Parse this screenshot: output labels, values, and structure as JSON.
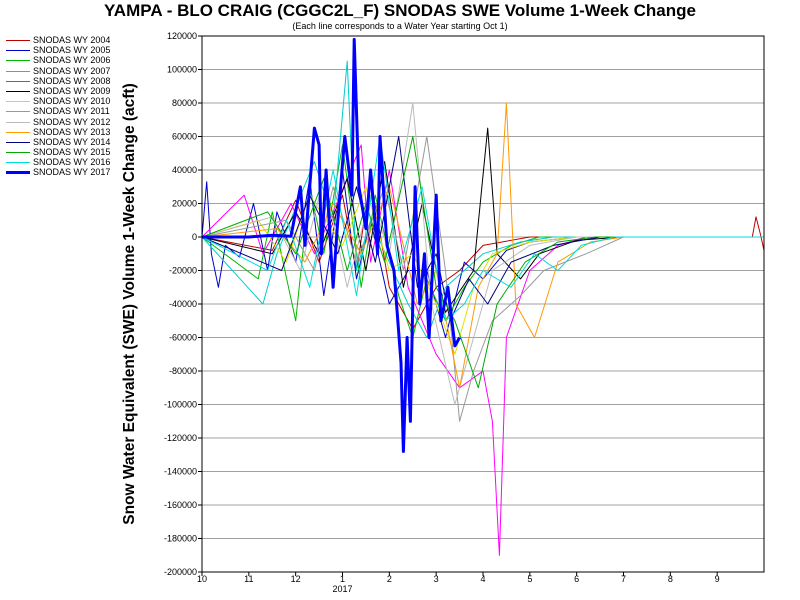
{
  "title": "YAMPA - BLO CRAIG (CGGC2L_F) SNODAS SWE Volume 1-Week Change",
  "subtitle": "(Each line corresponds to a Water Year starting Oct 1)",
  "chart_data": {
    "type": "line",
    "title": "YAMPA - BLO CRAIG (CGGC2L_F) SNODAS SWE Volume 1-Week Change",
    "subtitle": "(Each line corresponds to a Water Year starting Oct 1)",
    "ylabel": "Snow Water Equivalent (SWE) Volume 1-Week Change (acft)",
    "xlabel": "",
    "ylim": [
      -200000,
      120000
    ],
    "yticks": [
      120000,
      100000,
      80000,
      60000,
      40000,
      20000,
      0,
      -20000,
      -40000,
      -60000,
      -80000,
      -100000,
      -120000,
      -140000,
      -160000,
      -180000,
      -200000
    ],
    "ytick_labels": [
      "120000",
      "100000",
      "80000",
      "60000",
      "40000",
      "20000",
      "0",
      "-20000",
      "-40000",
      "-60000",
      "-80000",
      "-100000",
      "-120000",
      "-140000",
      "-160000",
      "-180000",
      "-200000"
    ],
    "xlim": [
      0,
      12
    ],
    "xticks": [
      0,
      1,
      2,
      3,
      4,
      5,
      6,
      7,
      8,
      9,
      10,
      11
    ],
    "xtick_labels": [
      "10",
      "11",
      "12",
      "1",
      "2",
      "3",
      "4",
      "5",
      "6",
      "7",
      "8",
      "9"
    ],
    "x_year_label": "2017",
    "x_units": "months since Oct 1",
    "grid": true,
    "legend_position": "left",
    "series": [
      {
        "name": "SNODAS WY 2004",
        "color": "#c00000",
        "points": [
          [
            0,
            0
          ],
          [
            1.5,
            -8000
          ],
          [
            2,
            22000
          ],
          [
            2.5,
            -15000
          ],
          [
            3,
            25000
          ],
          [
            3.3,
            -20000
          ],
          [
            3.6,
            35000
          ],
          [
            4,
            -30000
          ],
          [
            4.5,
            -55000
          ],
          [
            5,
            -30000
          ],
          [
            5.5,
            -20000
          ],
          [
            6,
            -5000
          ],
          [
            7,
            0
          ],
          [
            11.75,
            0
          ],
          [
            11.83,
            12000
          ],
          [
            11.92,
            2000
          ],
          [
            12,
            -8000
          ]
        ]
      },
      {
        "name": "SNODAS WY 2005",
        "color": "#0000cc",
        "points": [
          [
            0,
            0
          ],
          [
            0.1,
            33000
          ],
          [
            0.2,
            -10000
          ],
          [
            0.35,
            -30000
          ],
          [
            0.5,
            -5000
          ],
          [
            0.8,
            -12000
          ],
          [
            1.1,
            20000
          ],
          [
            1.4,
            -20000
          ],
          [
            1.6,
            15000
          ],
          [
            2,
            -15000
          ],
          [
            2.3,
            35000
          ],
          [
            2.6,
            -35000
          ],
          [
            3,
            40000
          ],
          [
            3.3,
            -25000
          ],
          [
            3.6,
            10000
          ],
          [
            4,
            -40000
          ],
          [
            4.4,
            -20000
          ],
          [
            4.8,
            -20000
          ],
          [
            5.2,
            -60000
          ],
          [
            5.6,
            -15000
          ],
          [
            6,
            -25000
          ],
          [
            6.5,
            -8000
          ],
          [
            7,
            -3000
          ],
          [
            8,
            0
          ],
          [
            12,
            0
          ]
        ]
      },
      {
        "name": "SNODAS WY 2006",
        "color": "#00bb00",
        "points": [
          [
            0,
            0
          ],
          [
            1.2,
            -25000
          ],
          [
            1.5,
            15000
          ],
          [
            2,
            -50000
          ],
          [
            2.3,
            30000
          ],
          [
            2.6,
            -10000
          ],
          [
            3,
            55000
          ],
          [
            3.4,
            -30000
          ],
          [
            3.7,
            25000
          ],
          [
            4.2,
            -35000
          ],
          [
            4.5,
            -60000
          ],
          [
            4.8,
            -25000
          ],
          [
            5.2,
            -50000
          ],
          [
            5.6,
            -30000
          ],
          [
            6,
            -15000
          ],
          [
            6.6,
            -5000
          ],
          [
            7.2,
            0
          ],
          [
            12,
            0
          ]
        ]
      },
      {
        "name": "SNODAS WY 2007",
        "color": "#00cccc",
        "points": [
          [
            0,
            0
          ],
          [
            1.3,
            -40000
          ],
          [
            1.6,
            -10000
          ],
          [
            2.4,
            45000
          ],
          [
            2.8,
            10000
          ],
          [
            3.1,
            105000
          ],
          [
            3.3,
            -20000
          ],
          [
            3.6,
            10000
          ],
          [
            4,
            -15000
          ],
          [
            4.4,
            -40000
          ],
          [
            4.8,
            -60000
          ],
          [
            5.2,
            -30000
          ],
          [
            5.6,
            -20000
          ],
          [
            6,
            -10000
          ],
          [
            6.8,
            -3000
          ],
          [
            7.5,
            0
          ],
          [
            12,
            0
          ]
        ]
      },
      {
        "name": "SNODAS WY 2008",
        "color": "#ff00ff",
        "points": [
          [
            0,
            0
          ],
          [
            0.9,
            25000
          ],
          [
            1.3,
            -10000
          ],
          [
            1.9,
            20000
          ],
          [
            2.4,
            -10000
          ],
          [
            2.8,
            15000
          ],
          [
            3.4,
            55000
          ],
          [
            3.6,
            -15000
          ],
          [
            4,
            40000
          ],
          [
            4.4,
            -30000
          ],
          [
            5,
            -70000
          ],
          [
            5.5,
            -90000
          ],
          [
            6.0,
            -80000
          ],
          [
            6.2,
            -110000
          ],
          [
            6.35,
            -190000
          ],
          [
            6.5,
            -60000
          ],
          [
            7,
            -20000
          ],
          [
            7.6,
            -5000
          ],
          [
            8.2,
            0
          ],
          [
            12,
            0
          ]
        ]
      },
      {
        "name": "SNODAS WY 2009",
        "color": "#000000",
        "points": [
          [
            0,
            0
          ],
          [
            1.5,
            -10000
          ],
          [
            2,
            15000
          ],
          [
            2.5,
            -10000
          ],
          [
            3.1,
            35000
          ],
          [
            3.5,
            -20000
          ],
          [
            3.9,
            45000
          ],
          [
            4.3,
            -30000
          ],
          [
            4.7,
            20000
          ],
          [
            5.2,
            -45000
          ],
          [
            5.8,
            -20000
          ],
          [
            6.1,
            65000
          ],
          [
            6.3,
            -10000
          ],
          [
            6.8,
            -25000
          ],
          [
            7.2,
            -10000
          ],
          [
            8,
            -2000
          ],
          [
            9,
            0
          ],
          [
            12,
            0
          ]
        ]
      },
      {
        "name": "SNODAS WY 2010",
        "color": "#e0e000",
        "points": [
          [
            0,
            0
          ],
          [
            1.2,
            10000
          ],
          [
            1.8,
            -15000
          ],
          [
            2.3,
            25000
          ],
          [
            3,
            -5000
          ],
          [
            3.5,
            30000
          ],
          [
            4,
            -20000
          ],
          [
            4.5,
            -10000
          ],
          [
            5,
            -40000
          ],
          [
            5.4,
            -70000
          ],
          [
            5.8,
            -30000
          ],
          [
            6.2,
            -10000
          ],
          [
            7,
            -3000
          ],
          [
            8,
            0
          ],
          [
            12,
            0
          ]
        ]
      },
      {
        "name": "SNODAS WY 2011",
        "color": "#999999",
        "points": [
          [
            0,
            0
          ],
          [
            1.8,
            10000
          ],
          [
            2.4,
            -20000
          ],
          [
            2.8,
            30000
          ],
          [
            3.3,
            -15000
          ],
          [
            3.9,
            30000
          ],
          [
            4.3,
            -20000
          ],
          [
            4.8,
            60000
          ],
          [
            5.2,
            -20000
          ],
          [
            5.5,
            -110000
          ],
          [
            5.8,
            -80000
          ],
          [
            6.2,
            -50000
          ],
          [
            6.8,
            -35000
          ],
          [
            7.3,
            -20000
          ],
          [
            8.2,
            -10000
          ],
          [
            8.6,
            -5000
          ],
          [
            9,
            0
          ],
          [
            12,
            0
          ]
        ]
      },
      {
        "name": "SNODAS WY 2012",
        "color": "#bbbbbb",
        "points": [
          [
            0,
            0
          ],
          [
            1.5,
            12000
          ],
          [
            2.1,
            -20000
          ],
          [
            2.6,
            35000
          ],
          [
            3.1,
            -30000
          ],
          [
            3.6,
            25000
          ],
          [
            4,
            -10000
          ],
          [
            4.5,
            80000
          ],
          [
            4.9,
            -40000
          ],
          [
            5.4,
            -100000
          ],
          [
            5.8,
            -60000
          ],
          [
            6.2,
            -20000
          ],
          [
            7,
            -5000
          ],
          [
            8,
            0
          ],
          [
            12,
            0
          ]
        ]
      },
      {
        "name": "SNODAS WY 2013",
        "color": "#ff9900",
        "points": [
          [
            0,
            0
          ],
          [
            1.6,
            5000
          ],
          [
            2.2,
            -15000
          ],
          [
            2.8,
            20000
          ],
          [
            3.4,
            -10000
          ],
          [
            4,
            30000
          ],
          [
            4.6,
            -40000
          ],
          [
            5,
            -20000
          ],
          [
            5.5,
            -90000
          ],
          [
            5.9,
            -30000
          ],
          [
            6.3,
            -10000
          ],
          [
            6.5,
            80000
          ],
          [
            6.7,
            -40000
          ],
          [
            7.1,
            -60000
          ],
          [
            7.6,
            -15000
          ],
          [
            8.3,
            -3000
          ],
          [
            9,
            0
          ],
          [
            12,
            0
          ]
        ]
      },
      {
        "name": "SNODAS WY 2014",
        "color": "#000080",
        "points": [
          [
            0,
            0
          ],
          [
            1.7,
            -20000
          ],
          [
            2.3,
            25000
          ],
          [
            2.9,
            -10000
          ],
          [
            3.3,
            30000
          ],
          [
            3.7,
            -15000
          ],
          [
            4.2,
            60000
          ],
          [
            4.6,
            -30000
          ],
          [
            5,
            -10000
          ],
          [
            5.3,
            -50000
          ],
          [
            5.7,
            -25000
          ],
          [
            6.1,
            -40000
          ],
          [
            6.6,
            -15000
          ],
          [
            7.5,
            -5000
          ],
          [
            8.5,
            0
          ],
          [
            12,
            0
          ]
        ]
      },
      {
        "name": "SNODAS WY 2015",
        "color": "#00aa00",
        "points": [
          [
            0,
            0
          ],
          [
            1.4,
            15000
          ],
          [
            2,
            -10000
          ],
          [
            2.6,
            35000
          ],
          [
            3.1,
            -20000
          ],
          [
            3.5,
            20000
          ],
          [
            3.9,
            -15000
          ],
          [
            4.5,
            60000
          ],
          [
            5,
            -30000
          ],
          [
            5.4,
            -50000
          ],
          [
            5.9,
            -90000
          ],
          [
            6.3,
            -40000
          ],
          [
            6.9,
            -15000
          ],
          [
            7.6,
            -3000
          ],
          [
            8.4,
            0
          ],
          [
            12,
            0
          ]
        ]
      },
      {
        "name": "SNODAS WY 2016",
        "color": "#00dddd",
        "points": [
          [
            0,
            0
          ],
          [
            1.4,
            -20000
          ],
          [
            1.8,
            10000
          ],
          [
            2.3,
            -30000
          ],
          [
            2.8,
            40000
          ],
          [
            3.3,
            -35000
          ],
          [
            3.8,
            60000
          ],
          [
            4.2,
            -20000
          ],
          [
            4.7,
            30000
          ],
          [
            5.2,
            -50000
          ],
          [
            5.6,
            -40000
          ],
          [
            6,
            -20000
          ],
          [
            6.6,
            -30000
          ],
          [
            7.1,
            -10000
          ],
          [
            7.6,
            -20000
          ],
          [
            8.1,
            -5000
          ],
          [
            8.8,
            0
          ],
          [
            12,
            0
          ]
        ]
      },
      {
        "name": "SNODAS WY 2017",
        "color": "#0000ff",
        "thick": true,
        "points": [
          [
            0,
            0
          ],
          [
            0.5,
            0
          ],
          [
            1,
            0
          ],
          [
            1.5,
            1000
          ],
          [
            1.9,
            500
          ],
          [
            2.1,
            30000
          ],
          [
            2.2,
            -5000
          ],
          [
            2.4,
            65000
          ],
          [
            2.5,
            55000
          ],
          [
            2.55,
            -10000
          ],
          [
            2.65,
            40000
          ],
          [
            2.8,
            -30000
          ],
          [
            2.9,
            10000
          ],
          [
            3.05,
            60000
          ],
          [
            3.2,
            25000
          ],
          [
            3.25,
            118000
          ],
          [
            3.35,
            30000
          ],
          [
            3.5,
            5000
          ],
          [
            3.6,
            40000
          ],
          [
            3.75,
            -10000
          ],
          [
            3.8,
            60000
          ],
          [
            3.95,
            -5000
          ],
          [
            4.1,
            -20000
          ],
          [
            4.25,
            -75000
          ],
          [
            4.3,
            -128000
          ],
          [
            4.38,
            -60000
          ],
          [
            4.45,
            -110000
          ],
          [
            4.55,
            30000
          ],
          [
            4.65,
            -40000
          ],
          [
            4.75,
            -10000
          ],
          [
            4.85,
            -60000
          ],
          [
            5.0,
            25000
          ],
          [
            5.1,
            -50000
          ],
          [
            5.25,
            -30000
          ],
          [
            5.4,
            -65000
          ],
          [
            5.5,
            -60000
          ]
        ]
      }
    ]
  }
}
